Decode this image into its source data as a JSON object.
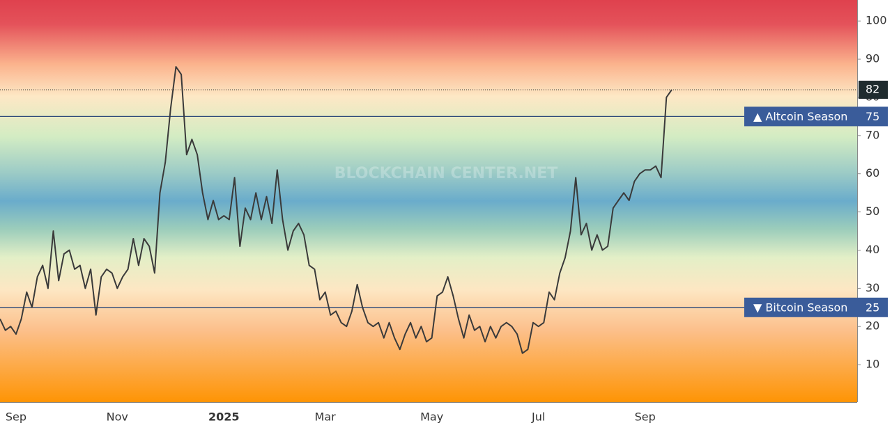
{
  "chart_data": {
    "type": "line",
    "watermark": "BLOCKCHAIN CENTER.NET",
    "categories": [
      null,
      null,
      null,
      "Sep",
      null,
      null,
      null,
      null,
      null,
      null,
      null,
      null,
      null,
      null,
      null,
      null,
      null,
      null,
      null,
      null,
      null,
      null,
      "Nov",
      null,
      null,
      null,
      null,
      null,
      null,
      null,
      null,
      null,
      null,
      null,
      null,
      null,
      null,
      null,
      null,
      null,
      null,
      null,
      "2025",
      null,
      null,
      null,
      null,
      null,
      null,
      null,
      null,
      null,
      null,
      null,
      null,
      null,
      null,
      null,
      null,
      null,
      null,
      "Mar",
      null,
      null,
      null,
      null,
      null,
      null,
      null,
      null,
      null,
      null,
      null,
      null,
      null,
      null,
      null,
      null,
      null,
      null,
      null,
      "May",
      null,
      null,
      null,
      null,
      null,
      null,
      null,
      null,
      null,
      null,
      null,
      null,
      null,
      null,
      null,
      null,
      null,
      null,
      null,
      "Jul",
      null,
      null,
      null,
      null,
      null,
      null,
      null,
      null,
      null,
      null,
      null,
      null,
      null,
      null,
      null,
      null,
      null,
      null,
      null,
      "Sep",
      null,
      null,
      null,
      null,
      null
    ],
    "series": [
      {
        "color": "#3a3a3a",
        "values": [
          22,
          19,
          20,
          18,
          22,
          29,
          25,
          33,
          36,
          30,
          45,
          32,
          39,
          40,
          35,
          36,
          30,
          35,
          23,
          33,
          35,
          34,
          30,
          33,
          35,
          43,
          36,
          43,
          41,
          34,
          55,
          63,
          77,
          88,
          86,
          65,
          69,
          65,
          55,
          48,
          53,
          48,
          49,
          48,
          59,
          41,
          51,
          48,
          55,
          48,
          54,
          47,
          61,
          48,
          40,
          45,
          47,
          44,
          36,
          35,
          27,
          29,
          23,
          24,
          21,
          20,
          24,
          31,
          25,
          21,
          20,
          21,
          17,
          21,
          17,
          14,
          18,
          21,
          17,
          20,
          16,
          17,
          28,
          29,
          33,
          28,
          22,
          17,
          23,
          19,
          20,
          16,
          20,
          17,
          20,
          21,
          20,
          18,
          13,
          14,
          21,
          20,
          21,
          29,
          27,
          34,
          38,
          45,
          59,
          44,
          47,
          40,
          44,
          40,
          41,
          51,
          53,
          55,
          53,
          58,
          60,
          61,
          61,
          62,
          59,
          80,
          82
        ]
      }
    ],
    "ylim": [
      0,
      105.5
    ],
    "yticks": [
      10,
      20,
      30,
      40,
      50,
      60,
      70,
      80,
      90,
      100
    ],
    "annotations": [
      {
        "label": "▲ Altcoin Season",
        "value": 75
      },
      {
        "label": "▼ Bitcoin Season",
        "value": 25
      }
    ]
  }
}
